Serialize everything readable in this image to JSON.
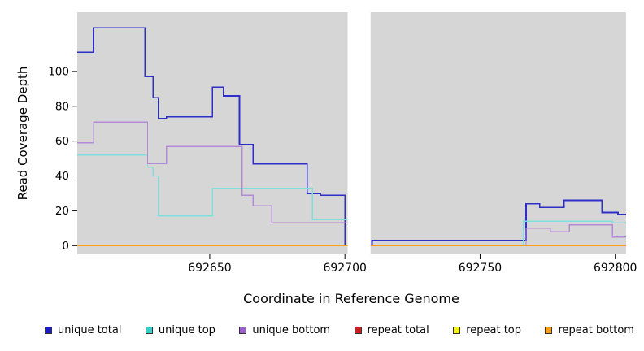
{
  "chart_data": {
    "type": "line",
    "step": true,
    "title": "",
    "xlabel": "Coordinate in Reference Genome",
    "ylabel": "Read Coverage Depth",
    "xlim": [
      692601,
      692804
    ],
    "ylim": [
      -5,
      134
    ],
    "xticks": [
      692650,
      692700,
      692750,
      692800
    ],
    "yticks": [
      0,
      20,
      40,
      60,
      80,
      100
    ],
    "plot_background": "#d6d6d6",
    "gap_region": [
      692701,
      692709.5
    ],
    "legend_position": "bottom",
    "grid": false,
    "series": [
      {
        "name": "unique total",
        "color": "#2e2ec9",
        "points": [
          [
            692601,
            111
          ],
          [
            692607,
            125
          ],
          [
            692626,
            97
          ],
          [
            692629,
            85
          ],
          [
            692631,
            73
          ],
          [
            692634,
            74
          ],
          [
            692651,
            91
          ],
          [
            692655,
            86
          ],
          [
            692661,
            58
          ],
          [
            692666,
            47
          ],
          [
            692686,
            30
          ],
          [
            692691,
            29
          ],
          [
            692700,
            0
          ],
          [
            692710,
            3
          ],
          [
            692767,
            24
          ],
          [
            692772,
            22
          ],
          [
            692781,
            26
          ],
          [
            692795,
            19
          ],
          [
            692801,
            18
          ]
        ]
      },
      {
        "name": "unique top",
        "color": "#7ee0dc",
        "points": [
          [
            692601,
            52
          ],
          [
            692627,
            45
          ],
          [
            692629,
            40
          ],
          [
            692631,
            17
          ],
          [
            692651,
            33
          ],
          [
            692688,
            15
          ],
          [
            692702,
            0
          ],
          [
            692766,
            14
          ],
          [
            692799,
            13
          ]
        ]
      },
      {
        "name": "unique bottom",
        "color": "#b48ad8",
        "points": [
          [
            692601,
            59
          ],
          [
            692607,
            71
          ],
          [
            692627,
            47
          ],
          [
            692634,
            57
          ],
          [
            692662,
            29
          ],
          [
            692666,
            23
          ],
          [
            692673,
            13
          ],
          [
            692702,
            0
          ],
          [
            692767,
            10
          ],
          [
            692776,
            8
          ],
          [
            692783,
            12
          ],
          [
            692799,
            5
          ]
        ]
      },
      {
        "name": "repeat total",
        "color": "#cc2020",
        "points": [
          [
            692601,
            0
          ]
        ]
      },
      {
        "name": "repeat top",
        "color": "#f2f216",
        "points": [
          [
            692601,
            0
          ]
        ]
      },
      {
        "name": "repeat bottom",
        "color": "#ff9d14",
        "points": [
          [
            692601,
            0
          ]
        ]
      }
    ]
  },
  "legend": {
    "items": [
      {
        "label": "unique total",
        "color": "#1c1cc4"
      },
      {
        "label": "unique top",
        "color": "#35cfc9"
      },
      {
        "label": "unique bottom",
        "color": "#9b5fd0"
      },
      {
        "label": "repeat total",
        "color": "#cc2020"
      },
      {
        "label": "repeat top",
        "color": "#f2f216"
      },
      {
        "label": "repeat bottom",
        "color": "#ff9d14"
      }
    ]
  }
}
